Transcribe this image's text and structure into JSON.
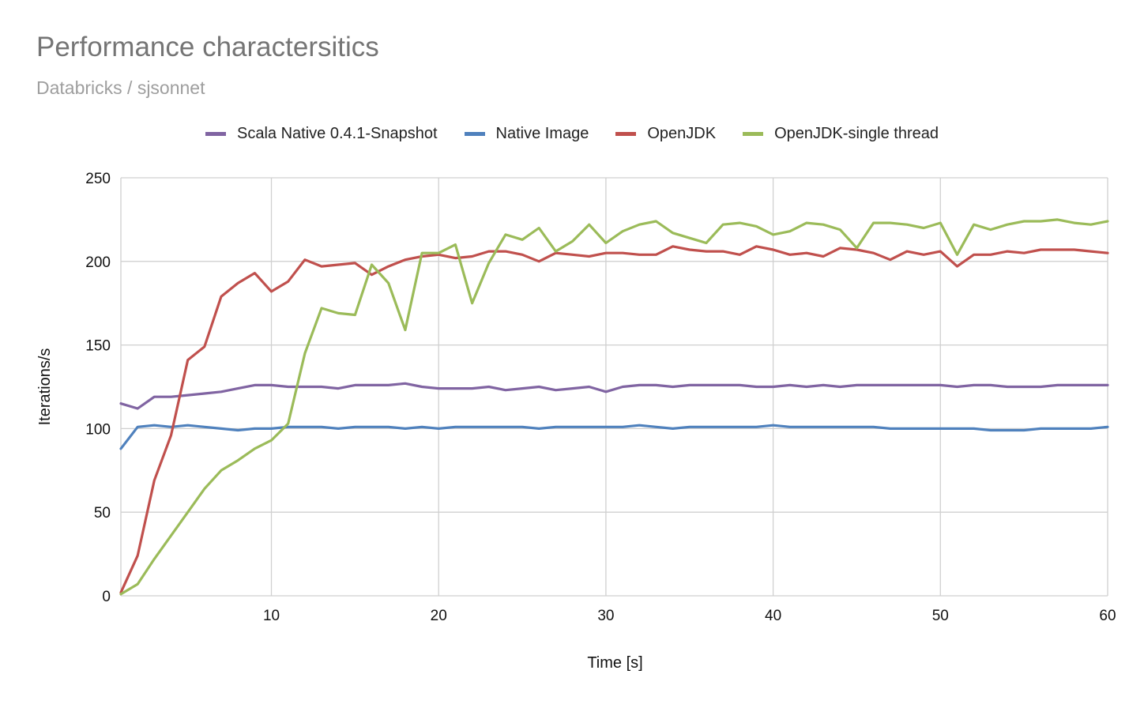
{
  "chart_data": {
    "type": "line",
    "title": "Performance charactersitics",
    "subtitle": "Databricks / sjsonnet",
    "xlabel": "Time [s]",
    "ylabel": "Iterations/s",
    "xlim": [
      1,
      60
    ],
    "ylim": [
      0,
      250
    ],
    "xticks": [
      10,
      20,
      30,
      40,
      50,
      60
    ],
    "yticks": [
      0,
      50,
      100,
      150,
      200,
      250
    ],
    "grid": true,
    "legend_position": "top",
    "x": [
      1,
      2,
      3,
      4,
      5,
      6,
      7,
      8,
      9,
      10,
      11,
      12,
      13,
      14,
      15,
      16,
      17,
      18,
      19,
      20,
      21,
      22,
      23,
      24,
      25,
      26,
      27,
      28,
      29,
      30,
      31,
      32,
      33,
      34,
      35,
      36,
      37,
      38,
      39,
      40,
      41,
      42,
      43,
      44,
      45,
      46,
      47,
      48,
      49,
      50,
      51,
      52,
      53,
      54,
      55,
      56,
      57,
      58,
      59,
      60
    ],
    "series": [
      {
        "name": "Scala Native 0.4.1-Snapshot",
        "color": "#8064a2",
        "values": [
          115,
          112,
          119,
          119,
          120,
          121,
          122,
          124,
          126,
          126,
          125,
          125,
          125,
          124,
          126,
          126,
          126,
          127,
          125,
          124,
          124,
          124,
          125,
          123,
          124,
          125,
          123,
          124,
          125,
          122,
          125,
          126,
          126,
          125,
          126,
          126,
          126,
          126,
          125,
          125,
          126,
          125,
          126,
          125,
          126,
          126,
          126,
          126,
          126,
          126,
          125,
          126,
          126,
          125,
          125,
          125,
          126,
          126,
          126,
          126
        ]
      },
      {
        "name": "Native Image",
        "color": "#4f81bd",
        "values": [
          88,
          101,
          102,
          101,
          102,
          101,
          100,
          99,
          100,
          100,
          101,
          101,
          101,
          100,
          101,
          101,
          101,
          100,
          101,
          100,
          101,
          101,
          101,
          101,
          101,
          100,
          101,
          101,
          101,
          101,
          101,
          102,
          101,
          100,
          101,
          101,
          101,
          101,
          101,
          102,
          101,
          101,
          101,
          101,
          101,
          101,
          100,
          100,
          100,
          100,
          100,
          100,
          99,
          99,
          99,
          100,
          100,
          100,
          100,
          101
        ]
      },
      {
        "name": "OpenJDK",
        "color": "#c0504d",
        "values": [
          2,
          24,
          69,
          96,
          141,
          149,
          179,
          187,
          193,
          182,
          188,
          201,
          197,
          198,
          199,
          192,
          197,
          201,
          203,
          204,
          202,
          203,
          206,
          206,
          204,
          200,
          205,
          204,
          203,
          205,
          205,
          204,
          204,
          209,
          207,
          206,
          206,
          204,
          209,
          207,
          204,
          205,
          203,
          208,
          207,
          205,
          201,
          206,
          204,
          206,
          197,
          204,
          204,
          206,
          205,
          207,
          207,
          207,
          206,
          205
        ]
      },
      {
        "name": "OpenJDK-single thread",
        "color": "#9bbb59",
        "values": [
          1,
          7,
          22,
          36,
          50,
          64,
          75,
          81,
          88,
          93,
          103,
          145,
          172,
          169,
          168,
          198,
          187,
          159,
          205,
          205,
          210,
          175,
          199,
          216,
          213,
          220,
          206,
          212,
          222,
          211,
          218,
          222,
          224,
          217,
          214,
          211,
          222,
          223,
          221,
          216,
          218,
          223,
          222,
          219,
          208,
          223,
          223,
          222,
          220,
          223,
          204,
          222,
          219,
          222,
          224,
          224,
          225,
          223,
          222,
          224
        ]
      }
    ]
  }
}
